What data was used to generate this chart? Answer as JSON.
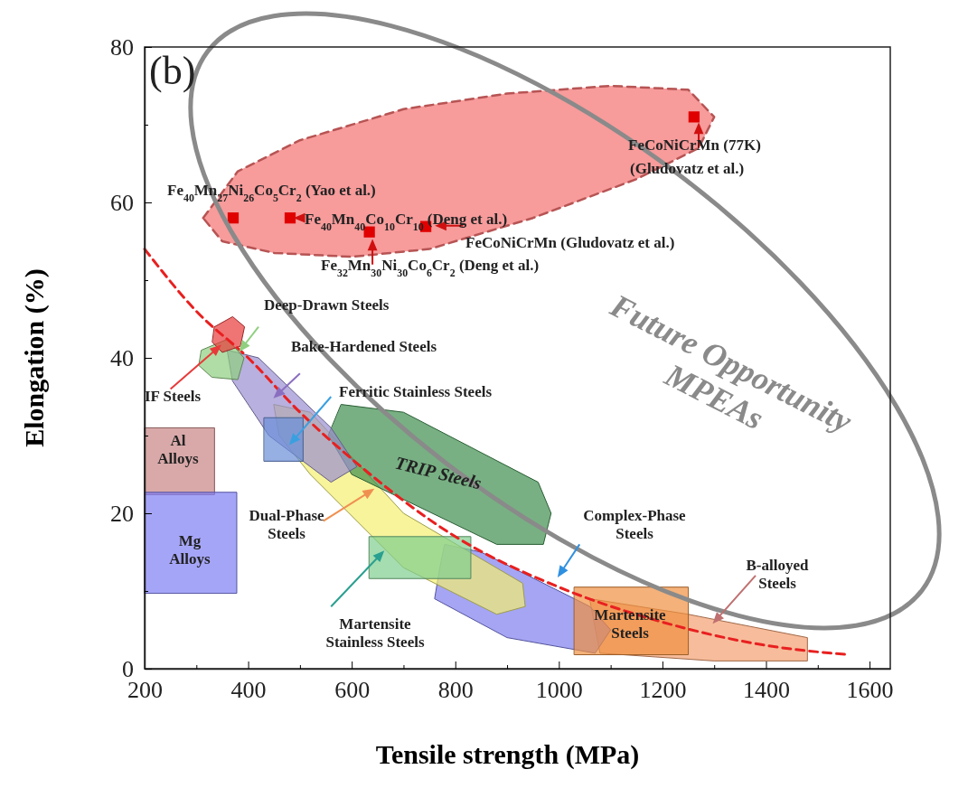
{
  "chart_data": {
    "type": "scatter",
    "xlabel": "Tensile strength (MPa)",
    "ylabel": "Elongation (%)",
    "xlim": [
      200,
      1640
    ],
    "ylim": [
      0,
      80
    ],
    "xticks": [
      200,
      {
        "value": 300,
        "label": null
      },
      400,
      {
        "value": 500,
        "label": null
      },
      600,
      {
        "value": 700,
        "label": null
      },
      800,
      {
        "value": 900,
        "label": null
      },
      1000,
      {
        "value": 1100,
        "label": null
      },
      1200,
      {
        "value": 1300,
        "label": null
      },
      1400,
      {
        "value": 1500,
        "label": null
      },
      1600
    ],
    "yticks": [
      0,
      {
        "value": 10,
        "label": null
      },
      20,
      {
        "value": 30,
        "label": null
      },
      40,
      {
        "value": 50,
        "label": null
      },
      60,
      {
        "value": 70,
        "label": null
      },
      80
    ],
    "grid": false,
    "series": [
      {
        "type": "area",
        "color": "#c98585",
        "x": [
          200,
          335,
          335,
          200,
          200
        ],
        "values": [
          31,
          31,
          22.4,
          22.4,
          31
        ]
      },
      {
        "type": "area",
        "color": "#7f7ff5",
        "x": [
          200,
          378,
          378,
          200,
          200
        ],
        "values": [
          22.7,
          22.7,
          9.7,
          9.7,
          22.7
        ]
      },
      {
        "type": "area",
        "color": "#f4a070",
        "x": [
          1060,
          1250,
          1480,
          1480,
          1300,
          1080,
          1060
        ],
        "values": [
          9,
          7,
          4,
          1,
          1,
          2,
          9
        ]
      },
      {
        "type": "area",
        "color": "#7f7ff0",
        "x": [
          780,
          850,
          1060,
          1100,
          1070,
          900,
          760,
          770,
          780
        ],
        "values": [
          16,
          15,
          8,
          5,
          2,
          4,
          9,
          13,
          16
        ]
      },
      {
        "type": "area",
        "color": "#f09040",
        "x": [
          1030,
          1250,
          1250,
          1030,
          1030
        ],
        "values": [
          10.5,
          10.5,
          1.8,
          1.8,
          10.5
        ]
      },
      {
        "type": "area",
        "color": "#f3ef70",
        "x": [
          450,
          520,
          700,
          930,
          935,
          880,
          700,
          520,
          460,
          450
        ],
        "values": [
          34,
          33,
          20,
          11,
          8,
          7,
          13,
          25,
          30,
          34
        ]
      },
      {
        "type": "area",
        "color": "#3f8f4f",
        "x": [
          580,
          700,
          960,
          985,
          970,
          880,
          600,
          555,
          580
        ],
        "values": [
          34,
          33,
          24,
          20,
          16,
          16,
          25,
          30,
          34
        ]
      },
      {
        "type": "area",
        "color": "#7fcf8f",
        "x": [
          634,
          830,
          830,
          634,
          634
        ],
        "values": [
          17,
          17,
          11.6,
          11.6,
          17
        ]
      },
      {
        "type": "area",
        "color": "#9a8fd0",
        "x": [
          360,
          420,
          560,
          610,
          560,
          440,
          370,
          360
        ],
        "values": [
          41,
          40,
          31,
          26,
          24,
          30,
          37,
          41
        ]
      },
      {
        "type": "area",
        "color": "#8fcf7f",
        "x": [
          310,
          360,
          392,
          380,
          330,
          305,
          310
        ],
        "values": [
          41,
          42.4,
          40,
          37.2,
          37.5,
          39,
          41
        ]
      },
      {
        "type": "area",
        "color": "#e83a3a",
        "x": [
          335,
          370,
          393,
          385,
          350,
          331,
          335
        ],
        "values": [
          44,
          45.3,
          44,
          41.5,
          40.7,
          42,
          44
        ]
      },
      {
        "type": "area",
        "color": "#6a8fd8",
        "x": [
          431,
          506,
          506,
          431,
          431
        ],
        "values": [
          32.3,
          32.3,
          26.7,
          26.7,
          32.3
        ]
      },
      {
        "type": "area",
        "color": "#f47070",
        "line_style": "dashed",
        "x": [
          313,
          380,
          500,
          700,
          900,
          1100,
          1250,
          1300,
          1270,
          1150,
          950,
          750,
          600,
          450,
          350,
          313
        ],
        "values": [
          58,
          64,
          68,
          72,
          74,
          75,
          74.5,
          71,
          67,
          63,
          58,
          54,
          53,
          53.5,
          55,
          58
        ]
      },
      {
        "type": "line",
        "color": "#e82020",
        "line_style": "dashed",
        "x": [
          200,
          300,
          400,
          500,
          600,
          800,
          1000,
          1200,
          1400,
          1560
        ],
        "values": [
          54,
          46,
          40,
          33,
          27,
          17,
          10.5,
          6,
          3,
          1.8
        ]
      },
      {
        "type": "scatter",
        "marker": "square",
        "color": "#e00000",
        "x": [
          371,
          481,
          634,
          743,
          1261
        ],
        "values": [
          58,
          58,
          56.2,
          56.9,
          71
        ]
      }
    ],
    "annotations": [
      "(b)",
      "Fe$_{40}$Mn$_{27}$Ni$_{26}$Co$_{5}$Cr$_{2}$ (Yao et al.)",
      "Fe$_{40}$Mn$_{40}$Co$_{10}$Cr$_{10}$ (Deng et al.)",
      "FeCoNiCrMn (Gludovatz et al.)",
      "Fe$_{32}$Mn$_{30}$Ni$_{30}$Co$_{6}$Cr$_{2}$ (Deng et al.)",
      "FeCoNiCrMn (77K)",
      "(Gludovatz et al.)",
      "Future Opportunity\nMPEAs",
      "Deep-Drawn Steels",
      "Bake-Hardened Steels",
      "IF Steels",
      "Ferritic Stainless Steels",
      "Al\nAlloys",
      "TRIP Steels",
      "Dual-Phase\nSteels",
      "Mg\nAlloys",
      "Complex-Phase\nSteels",
      "B-alloyed\nSteels",
      "Martensite\nStainless Steels",
      "Martensite\nSteels"
    ]
  }
}
